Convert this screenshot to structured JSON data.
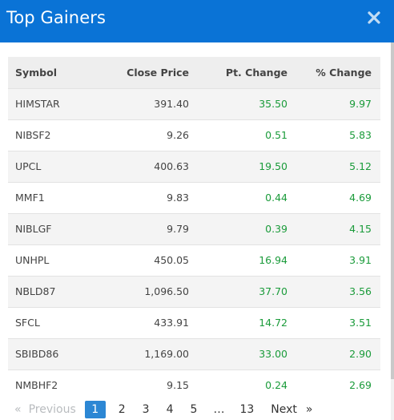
{
  "modal": {
    "title": "Top Gainers"
  },
  "table": {
    "headers": [
      "Symbol",
      "Close Price",
      "Pt. Change",
      "% Change"
    ],
    "rows": [
      {
        "symbol": "HIMSTAR",
        "close": "391.40",
        "pt": "35.50",
        "pct": "9.97"
      },
      {
        "symbol": "NIBSF2",
        "close": "9.26",
        "pt": "0.51",
        "pct": "5.83"
      },
      {
        "symbol": "UPCL",
        "close": "400.63",
        "pt": "19.50",
        "pct": "5.12"
      },
      {
        "symbol": "MMF1",
        "close": "9.83",
        "pt": "0.44",
        "pct": "4.69"
      },
      {
        "symbol": "NIBLGF",
        "close": "9.79",
        "pt": "0.39",
        "pct": "4.15"
      },
      {
        "symbol": "UNHPL",
        "close": "450.05",
        "pt": "16.94",
        "pct": "3.91"
      },
      {
        "symbol": "NBLD87",
        "close": "1,096.50",
        "pt": "37.70",
        "pct": "3.56"
      },
      {
        "symbol": "SFCL",
        "close": "433.91",
        "pt": "14.72",
        "pct": "3.51"
      },
      {
        "symbol": "SBIBD86",
        "close": "1,169.00",
        "pt": "33.00",
        "pct": "2.90"
      },
      {
        "symbol": "NMBHF2",
        "close": "9.15",
        "pt": "0.24",
        "pct": "2.69"
      }
    ]
  },
  "pagination": {
    "prev_arrow": "«",
    "prev": "Previous",
    "pages": [
      "1",
      "2",
      "3",
      "4",
      "5",
      "…",
      "13"
    ],
    "active": "1",
    "next": "Next",
    "next_arrow": "»"
  },
  "colors": {
    "header_bg": "#0a73d6",
    "positive": "#1a9b3a",
    "active_page": "#2c87d4"
  },
  "icons": {
    "close": "close-icon"
  }
}
